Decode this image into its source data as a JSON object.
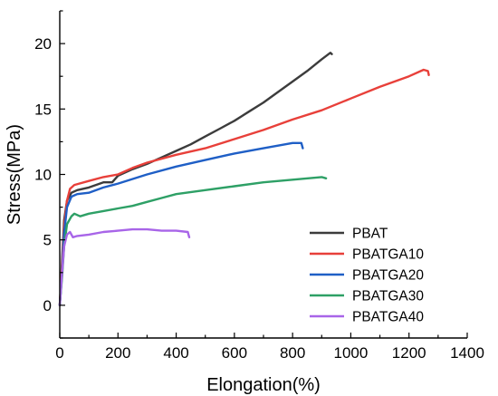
{
  "chart_data": {
    "type": "line",
    "title": "",
    "xlabel": "Elongation(%)",
    "ylabel": "Stress(MPa)",
    "xlim": [
      0,
      1400
    ],
    "ylim": [
      -2.5,
      22.5
    ],
    "x_ticks": [
      0,
      200,
      400,
      600,
      800,
      1000,
      1200,
      1400
    ],
    "y_ticks": [
      0,
      5,
      10,
      15,
      20
    ],
    "grid": false,
    "legend_position": "bottom-right",
    "series": [
      {
        "name": "PBAT",
        "color": "#3c3c3c",
        "points": [
          [
            0,
            0
          ],
          [
            8,
            3.5
          ],
          [
            15,
            6.5
          ],
          [
            25,
            8.0
          ],
          [
            40,
            8.6
          ],
          [
            60,
            8.8
          ],
          [
            100,
            9.0
          ],
          [
            150,
            9.4
          ],
          [
            180,
            9.4
          ],
          [
            200,
            9.9
          ],
          [
            250,
            10.4
          ],
          [
            300,
            10.8
          ],
          [
            350,
            11.3
          ],
          [
            400,
            11.8
          ],
          [
            450,
            12.3
          ],
          [
            500,
            12.9
          ],
          [
            550,
            13.5
          ],
          [
            600,
            14.1
          ],
          [
            650,
            14.8
          ],
          [
            700,
            15.5
          ],
          [
            750,
            16.3
          ],
          [
            800,
            17.1
          ],
          [
            850,
            17.9
          ],
          [
            900,
            18.8
          ],
          [
            930,
            19.3
          ],
          [
            935,
            19.2
          ]
        ]
      },
      {
        "name": "PBATGA10",
        "color": "#e8403a",
        "points": [
          [
            0,
            0
          ],
          [
            8,
            3.0
          ],
          [
            15,
            6.0
          ],
          [
            25,
            8.0
          ],
          [
            35,
            8.9
          ],
          [
            50,
            9.2
          ],
          [
            100,
            9.5
          ],
          [
            150,
            9.8
          ],
          [
            200,
            10.0
          ],
          [
            250,
            10.5
          ],
          [
            300,
            10.9
          ],
          [
            400,
            11.5
          ],
          [
            500,
            12.0
          ],
          [
            600,
            12.7
          ],
          [
            700,
            13.4
          ],
          [
            800,
            14.2
          ],
          [
            900,
            14.9
          ],
          [
            1000,
            15.8
          ],
          [
            1100,
            16.7
          ],
          [
            1200,
            17.5
          ],
          [
            1250,
            18.0
          ],
          [
            1265,
            17.9
          ],
          [
            1268,
            17.6
          ]
        ]
      },
      {
        "name": "PBATGA20",
        "color": "#1f5fc6",
        "points": [
          [
            0,
            0
          ],
          [
            8,
            2.5
          ],
          [
            15,
            5.5
          ],
          [
            25,
            7.5
          ],
          [
            40,
            8.3
          ],
          [
            60,
            8.5
          ],
          [
            100,
            8.6
          ],
          [
            150,
            9.0
          ],
          [
            200,
            9.3
          ],
          [
            300,
            10.0
          ],
          [
            400,
            10.6
          ],
          [
            500,
            11.1
          ],
          [
            600,
            11.6
          ],
          [
            700,
            12.0
          ],
          [
            800,
            12.4
          ],
          [
            830,
            12.4
          ],
          [
            835,
            12.0
          ]
        ]
      },
      {
        "name": "PBATGA30",
        "color": "#2ea066",
        "points": [
          [
            0,
            0
          ],
          [
            8,
            2.2
          ],
          [
            15,
            4.5
          ],
          [
            25,
            6.2
          ],
          [
            40,
            6.8
          ],
          [
            50,
            7.0
          ],
          [
            70,
            6.8
          ],
          [
            100,
            7.0
          ],
          [
            150,
            7.2
          ],
          [
            200,
            7.4
          ],
          [
            250,
            7.6
          ],
          [
            300,
            7.9
          ],
          [
            350,
            8.2
          ],
          [
            400,
            8.5
          ],
          [
            500,
            8.8
          ],
          [
            600,
            9.1
          ],
          [
            700,
            9.4
          ],
          [
            800,
            9.6
          ],
          [
            900,
            9.8
          ],
          [
            915,
            9.7
          ]
        ]
      },
      {
        "name": "PBATGA40",
        "color": "#a865e8",
        "points": [
          [
            0,
            0
          ],
          [
            8,
            2.5
          ],
          [
            15,
            4.5
          ],
          [
            25,
            5.4
          ],
          [
            35,
            5.6
          ],
          [
            45,
            5.2
          ],
          [
            60,
            5.3
          ],
          [
            100,
            5.4
          ],
          [
            150,
            5.6
          ],
          [
            200,
            5.7
          ],
          [
            250,
            5.8
          ],
          [
            300,
            5.8
          ],
          [
            350,
            5.7
          ],
          [
            400,
            5.7
          ],
          [
            440,
            5.6
          ],
          [
            445,
            5.2
          ]
        ]
      }
    ]
  }
}
